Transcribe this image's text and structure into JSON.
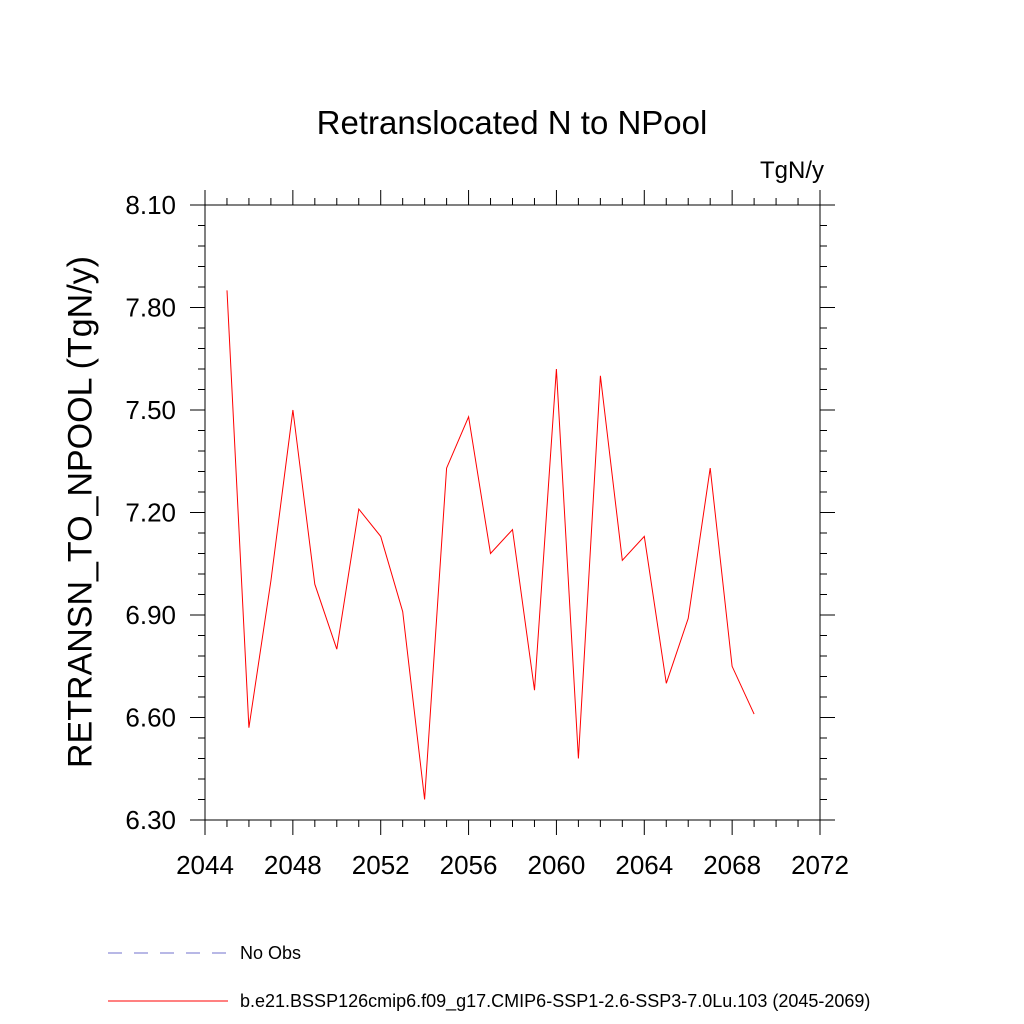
{
  "chart_data": {
    "type": "line",
    "title": "Retranslocated N to NPool",
    "units": "TgN/y",
    "ylabel": "RETRANSN_TO_NPOOL  (TgN/y)",
    "xlabel": "",
    "xlim": [
      2044,
      2072
    ],
    "ylim": [
      6.3,
      8.1
    ],
    "xticks": [
      2044,
      2048,
      2052,
      2056,
      2060,
      2064,
      2068,
      2072
    ],
    "xtick_labels": [
      "2044",
      "2048",
      "2052",
      "2056",
      "2060",
      "2064",
      "2068",
      "2072"
    ],
    "yticks": [
      6.3,
      6.6,
      6.9,
      7.2,
      7.5,
      7.8,
      8.1
    ],
    "ytick_labels": [
      "6.30",
      "6.60",
      "6.90",
      "7.20",
      "7.50",
      "7.80",
      "8.10"
    ],
    "series": [
      {
        "name": "b.e21.BSSP126cmip6.f09_g17.CMIP6-SSP1-2.6-SSP3-7.0Lu.103 (2045-2069)",
        "color": "#ff0000",
        "x": [
          2045,
          2046,
          2047,
          2048,
          2049,
          2050,
          2051,
          2052,
          2053,
          2054,
          2055,
          2056,
          2057,
          2058,
          2059,
          2060,
          2061,
          2062,
          2063,
          2064,
          2065,
          2066,
          2067,
          2068,
          2069
        ],
        "values": [
          7.85,
          6.57,
          7.0,
          7.5,
          6.99,
          6.8,
          7.21,
          7.13,
          6.91,
          6.36,
          7.33,
          7.48,
          7.08,
          7.15,
          6.68,
          7.62,
          6.48,
          7.6,
          7.06,
          7.13,
          6.7,
          6.89,
          7.33,
          6.75,
          6.61
        ]
      }
    ],
    "legend": [
      {
        "label": "No Obs",
        "color": "#7070cc",
        "style": "dashed"
      },
      {
        "label": "b.e21.BSSP126cmip6.f09_g17.CMIP6-SSP1-2.6-SSP3-7.0Lu.103 (2045-2069)",
        "color": "#ff0000",
        "style": "solid"
      }
    ],
    "legend_placement": "bottom",
    "grid": false
  }
}
